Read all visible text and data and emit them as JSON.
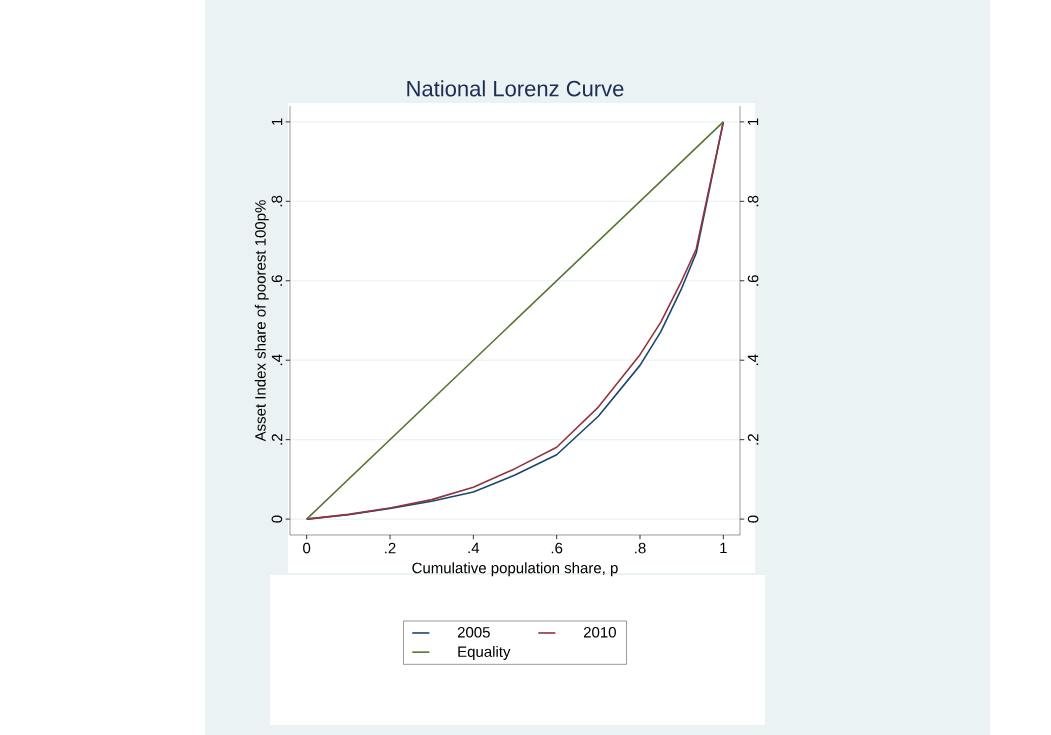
{
  "chart_data": {
    "type": "line",
    "title": "National Lorenz Curve",
    "xlabel": "Cumulative population share, p",
    "ylabel": "Asset Index share of poorest 100p%",
    "x": [
      0,
      0.1,
      0.2,
      0.3,
      0.4,
      0.5,
      0.6,
      0.7,
      0.8,
      0.85,
      0.9,
      0.935,
      1
    ],
    "series": [
      {
        "name": "2005",
        "color": "#1a476f",
        "values": [
          0,
          0.011,
          0.027,
          0.045,
          0.068,
          0.111,
          0.162,
          0.259,
          0.387,
          0.472,
          0.581,
          0.67,
          1
        ]
      },
      {
        "name": "2010",
        "color": "#90353b",
        "values": [
          0,
          0.012,
          0.028,
          0.049,
          0.08,
          0.127,
          0.181,
          0.282,
          0.414,
          0.496,
          0.6,
          0.68,
          1
        ]
      },
      {
        "name": "Equality",
        "color": "#55752f",
        "x": [
          0,
          1
        ],
        "values": [
          0,
          1
        ]
      }
    ],
    "xlim": [
      -0.04,
      1.04
    ],
    "ylim": [
      -0.04,
      1.04
    ],
    "xticks": [
      {
        "value": 0,
        "label": "0"
      },
      {
        "value": 0.2,
        "label": ".2"
      },
      {
        "value": 0.4,
        "label": ".4"
      },
      {
        "value": 0.6,
        "label": ".6"
      },
      {
        "value": 0.8,
        "label": ".8"
      },
      {
        "value": 1,
        "label": "1"
      }
    ],
    "yticks": [
      {
        "value": 0,
        "label": "0"
      },
      {
        "value": 0.2,
        "label": ".2"
      },
      {
        "value": 0.4,
        "label": ".4"
      },
      {
        "value": 0.6,
        "label": ".6"
      },
      {
        "value": 0.8,
        "label": ".8"
      },
      {
        "value": 1,
        "label": "1"
      }
    ],
    "y2lim": [
      -0.04,
      1.04
    ],
    "y2ticks": [
      {
        "value": 0,
        "label": "0"
      },
      {
        "value": 0.2,
        "label": ".2"
      },
      {
        "value": 0.4,
        "label": ".4"
      },
      {
        "value": 0.6,
        "label": ".6"
      },
      {
        "value": 0.8,
        "label": ".8"
      },
      {
        "value": 1,
        "label": "1"
      }
    ],
    "grid": "y",
    "legend": "bottom",
    "marker": "none",
    "line_style": "solid"
  }
}
